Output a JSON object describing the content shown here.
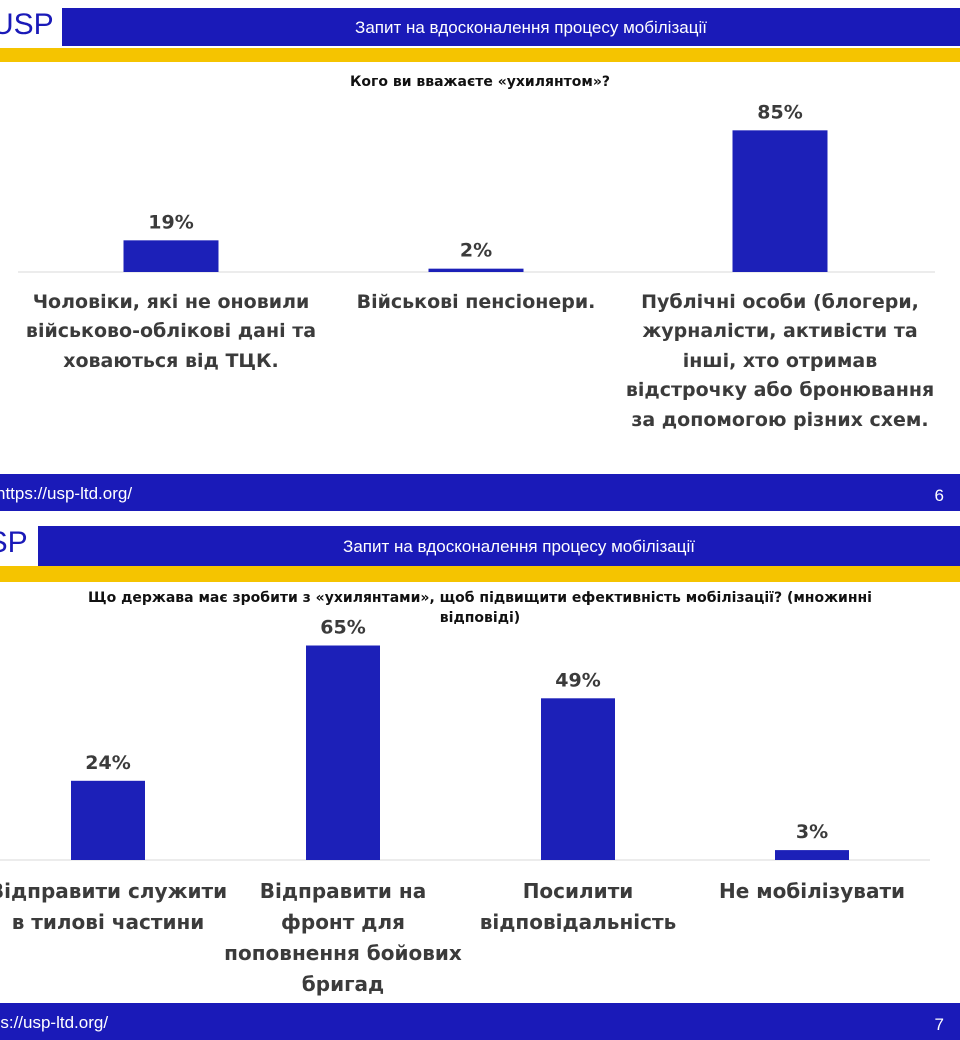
{
  "slides": [
    {
      "logo": "USP",
      "header": "Запит на вдосконалення процесу мобілізації",
      "url": "https://usp-ltd.org/",
      "page": 6
    },
    {
      "logo": "USP",
      "header": "Запит на вдосконалення процесу мобілізації",
      "url": "https://usp-ltd.org/",
      "page": 7
    }
  ],
  "chart_data": [
    {
      "type": "bar",
      "title": "Кого ви вважаєте «ухилянтом»?",
      "categories": [
        "Чоловіки, які не оновили військово-облікові дані та ховаються від ТЦК.",
        "Військові пенсіонери.",
        "Публічні особи (блогери, журналісти, активісти та інші, хто отримав відстрочку або бронювання за допомогою різних схем."
      ],
      "values": [
        19,
        2,
        85
      ],
      "value_labels": [
        "19%",
        "2%",
        "85%"
      ],
      "color": "#1c20b8",
      "ylim": [
        0,
        90
      ]
    },
    {
      "type": "bar",
      "title": "Що держава має зробити з «ухилянтами», щоб підвищити ефективність мобілізації? (множинні відповіді)",
      "categories": [
        "Відправити служити в тилові частини",
        "Відправити на фронт для поповнення бойових бригад",
        "Посилити відповідальність",
        "Не мобілізувати"
      ],
      "values": [
        24,
        65,
        49,
        3
      ],
      "value_labels": [
        "24%",
        "65%",
        "49%",
        "3%"
      ],
      "color": "#1c20b8",
      "ylim": [
        0,
        70
      ]
    }
  ]
}
